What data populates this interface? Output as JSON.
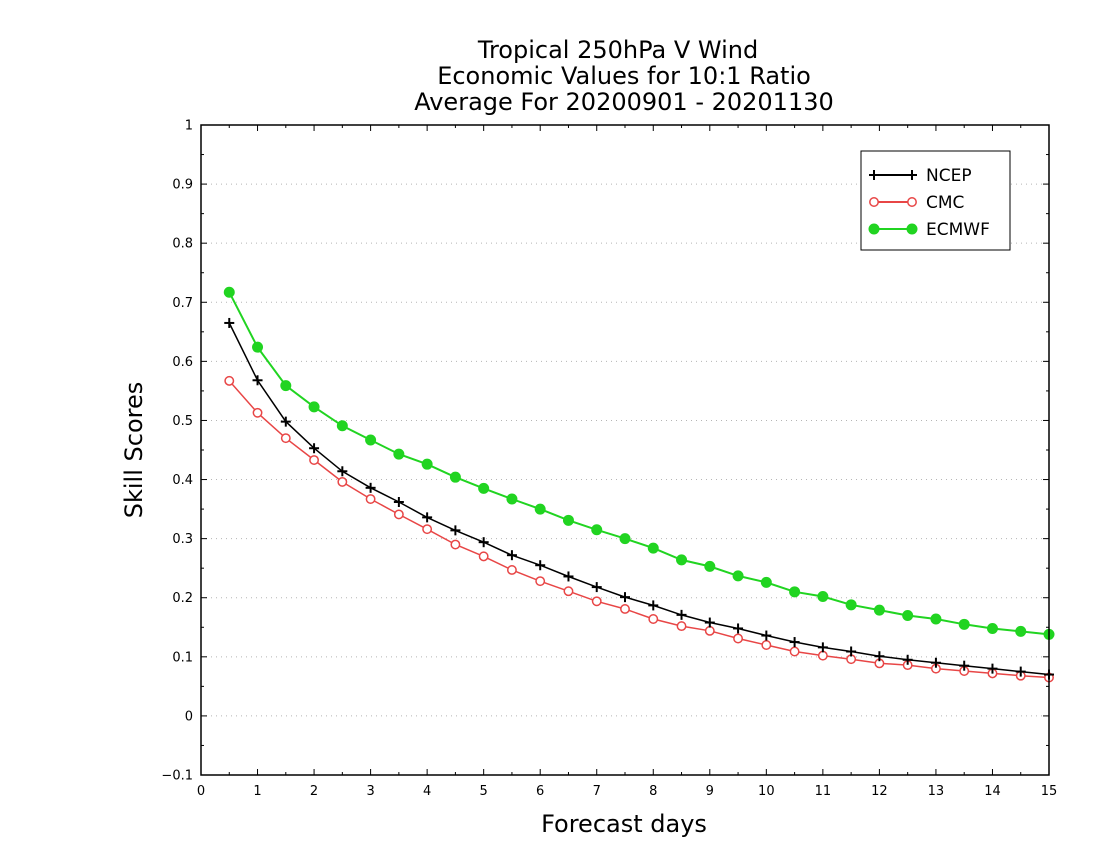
{
  "chart_data": {
    "type": "line",
    "title": [
      "Tropical 250hPa V Wind",
      "Economic Values for 10:1 Ratio",
      "Average For 20200901 - 20201130"
    ],
    "xlabel": "Forecast days",
    "ylabel": "Skill Scores",
    "xlim": [
      0,
      15
    ],
    "ylim": [
      -0.1,
      1
    ],
    "xticks": [
      0,
      1,
      2,
      3,
      4,
      5,
      6,
      7,
      8,
      9,
      10,
      11,
      12,
      13,
      14,
      15
    ],
    "xtick_labels": [
      "0",
      "1",
      "2",
      "3",
      "4",
      "5",
      "6",
      "7",
      "8",
      "9",
      "10",
      "11",
      "12",
      "13",
      "14",
      "15"
    ],
    "yticks": [
      -0.1,
      0,
      0.1,
      0.2,
      0.3,
      0.4,
      0.5,
      0.6,
      0.7,
      0.8,
      0.9,
      1
    ],
    "ytick_labels": [
      "−0.1",
      "0",
      "0.1",
      "0.2",
      "0.3",
      "0.4",
      "0.5",
      "0.6",
      "0.7",
      "0.8",
      "0.9",
      "1"
    ],
    "grid": "horizontal dotted",
    "legend_position": "top-right",
    "x": [
      0.5,
      1,
      1.5,
      2,
      2.5,
      3,
      3.5,
      4,
      4.5,
      5,
      5.5,
      6,
      6.5,
      7,
      7.5,
      8,
      8.5,
      9,
      9.5,
      10,
      10.5,
      11,
      11.5,
      12,
      12.5,
      13,
      13.5,
      14,
      14.5,
      15
    ],
    "series": [
      {
        "name": "NCEP",
        "color": "#000000",
        "marker": "plus",
        "values": [
          0.665,
          0.568,
          0.498,
          0.453,
          0.414,
          0.386,
          0.362,
          0.336,
          0.314,
          0.294,
          0.272,
          0.255,
          0.236,
          0.218,
          0.201,
          0.187,
          0.171,
          0.158,
          0.148,
          0.136,
          0.125,
          0.116,
          0.109,
          0.101,
          0.095,
          0.09,
          0.085,
          0.08,
          0.075,
          0.07
        ]
      },
      {
        "name": "CMC",
        "color": "#e84646",
        "marker": "open-circle",
        "values": [
          0.567,
          0.513,
          0.47,
          0.433,
          0.396,
          0.367,
          0.341,
          0.316,
          0.29,
          0.27,
          0.247,
          0.228,
          0.211,
          0.194,
          0.181,
          0.164,
          0.152,
          0.144,
          0.131,
          0.12,
          0.109,
          0.102,
          0.096,
          0.089,
          0.086,
          0.08,
          0.076,
          0.072,
          0.068,
          0.065
        ]
      },
      {
        "name": "ECMWF",
        "color": "#21d421",
        "marker": "filled-circle",
        "values": [
          0.717,
          0.624,
          0.559,
          0.523,
          0.491,
          0.467,
          0.443,
          0.426,
          0.404,
          0.385,
          0.367,
          0.35,
          0.331,
          0.315,
          0.3,
          0.284,
          0.264,
          0.253,
          0.237,
          0.226,
          0.21,
          0.202,
          0.188,
          0.179,
          0.17,
          0.164,
          0.155,
          0.148,
          0.143,
          0.138
        ]
      }
    ]
  }
}
